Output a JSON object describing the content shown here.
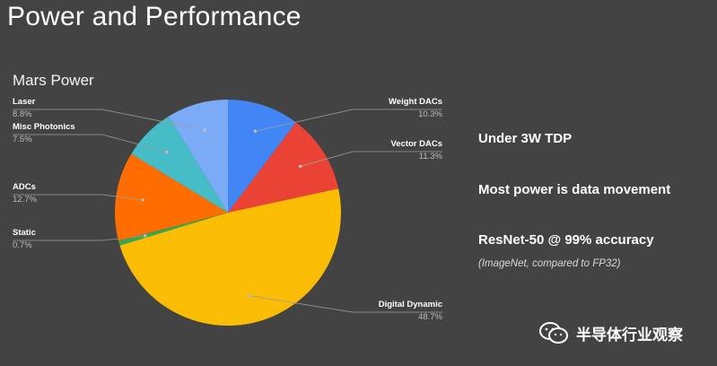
{
  "slide": {
    "title": "Power and Performance"
  },
  "chart_data": {
    "type": "pie",
    "title": "Mars Power",
    "slices": [
      {
        "label": "Weight DACs",
        "percent_label": "10.3%",
        "value": 10.3,
        "color": "#4285f4"
      },
      {
        "label": "Vector DACs",
        "percent_label": "11.3%",
        "value": 11.3,
        "color": "#ea4335"
      },
      {
        "label": "Digital Dynamic",
        "percent_label": "48.7%",
        "value": 48.7,
        "color": "#fbbc04"
      },
      {
        "label": "Static",
        "percent_label": "0.7%",
        "value": 0.7,
        "color": "#34a853"
      },
      {
        "label": "ADCs",
        "percent_label": "12.7%",
        "value": 12.7,
        "color": "#ff6d01"
      },
      {
        "label": "Misc Photonics",
        "percent_label": "7.5%",
        "value": 7.5,
        "color": "#46bdc6"
      },
      {
        "label": "Laser",
        "percent_label": "8.8%",
        "value": 8.8,
        "color": "#7baaf7"
      }
    ],
    "start_angle_deg": 0,
    "direction": "clockwise",
    "legend": "callout labels beside slices"
  },
  "bullets": [
    "Under 3W TDP",
    "Most power is data movement",
    "ResNet-50 @ 99% accuracy"
  ],
  "note": "(ImageNet, compared to FP32)",
  "watermark": {
    "text": "半导体行业观察",
    "icon": "wechat-icon"
  }
}
